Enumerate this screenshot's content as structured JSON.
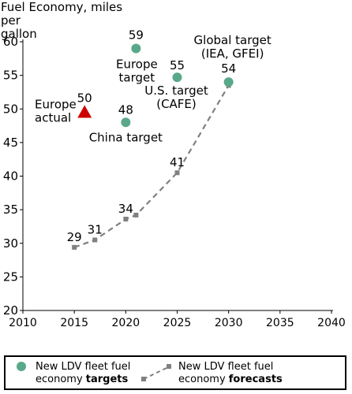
{
  "chart_data": {
    "type": "scatter",
    "ytitle_lines": [
      "Fuel Economy, miles",
      "per",
      "gallon"
    ],
    "xlim": [
      2010,
      2040
    ],
    "ylim": [
      20,
      60
    ],
    "xticks": [
      "2010",
      "2015",
      "2020",
      "2025",
      "2030",
      "2035",
      "2040"
    ],
    "yticks": [
      "20",
      "25",
      "30",
      "35",
      "40",
      "45",
      "50",
      "55",
      "60"
    ],
    "targets": [
      {
        "x": 2021,
        "y": 59,
        "value_label": "59",
        "name_lines": [
          "Europe",
          "target"
        ]
      },
      {
        "x": 2020,
        "y": 48,
        "value_label": "48",
        "name_lines": [
          "China target"
        ]
      },
      {
        "x": 2025,
        "y": 54.7,
        "value_label": "55",
        "name_lines": [
          "U.S. target",
          "(CAFE)"
        ]
      },
      {
        "x": 2030,
        "y": 54,
        "value_label": "54",
        "name_lines": [
          "Global target",
          "(IEA, GFEI)"
        ]
      }
    ],
    "actual": {
      "x": 2016,
      "y": 49.5,
      "value_label": "50",
      "name_lines": [
        "Europe",
        "actual"
      ]
    },
    "forecast": [
      {
        "x": 2015,
        "y": 29.4,
        "value_label": "29"
      },
      {
        "x": 2017,
        "y": 30.5,
        "value_label": "31"
      },
      {
        "x": 2020,
        "y": 33.6,
        "value_label": "34"
      },
      {
        "x": 2021,
        "y": 34.2,
        "value_label": ""
      },
      {
        "x": 2025,
        "y": 40.5,
        "value_label": "41"
      },
      {
        "x": 2030,
        "y": 53.5,
        "value_label": ""
      }
    ],
    "colors": {
      "target": "#5aa88a",
      "actual": "#cc0000",
      "forecast": "#808080"
    }
  },
  "legend": {
    "targets_text": "New LDV fleet fuel",
    "targets_line2_prefix": "economy ",
    "targets_line2_bold": "targets",
    "forecasts_text": "New LDV fleet fuel",
    "forecasts_line2_prefix": "economy ",
    "forecasts_line2_bold": "forecasts"
  }
}
